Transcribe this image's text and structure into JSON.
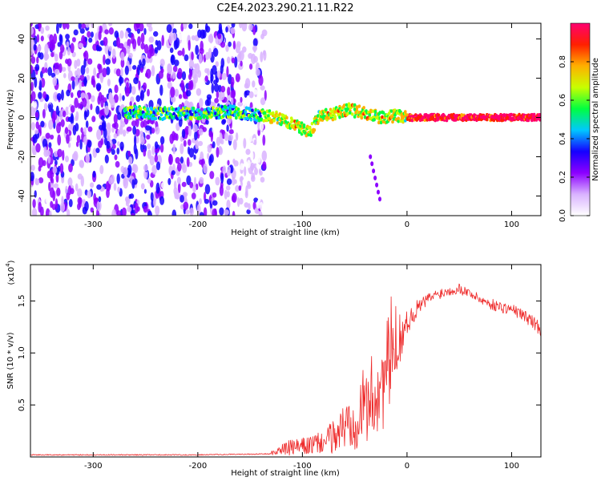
{
  "title": "C2E4.2023.290.21.11.R22",
  "chart_data": [
    {
      "type": "heatmap",
      "name": "spectrogram",
      "xlabel": "Height of straight line (km)",
      "ylabel": "Frequency (Hz)",
      "xlim": [
        -360,
        128
      ],
      "ylim": [
        -50,
        48
      ],
      "xticks": [
        -300,
        -200,
        -100,
        0,
        100
      ],
      "yticks": [
        -40,
        -20,
        0,
        20,
        40
      ],
      "noise_region": {
        "x_range": [
          -360,
          -145
        ],
        "gap": [
          -233,
          -228
        ]
      },
      "signal_ridge": {
        "x": [
          -270,
          -240,
          -200,
          -170,
          -140,
          -125,
          -112,
          -100,
          -92,
          -85,
          -70,
          -55,
          -40,
          -25,
          -10,
          0,
          50,
          100,
          128
        ],
        "y": [
          3,
          2,
          2,
          3,
          1,
          0,
          -3,
          -6,
          -7,
          0,
          2,
          4,
          2,
          0,
          1,
          0,
          0,
          0,
          0
        ]
      },
      "tail": {
        "x": [
          -35,
          -30,
          -25
        ],
        "y": [
          -20,
          -32,
          -44
        ]
      },
      "colorbar": {
        "label": "Normalized spectral amplitude",
        "range": [
          0,
          1
        ],
        "ticks": [
          0.0,
          0.2,
          0.4,
          0.6,
          0.8
        ],
        "tick_labels": [
          "0.0",
          "0.2",
          "0.4",
          "0.6",
          "0.8"
        ],
        "colors": [
          "#ffffff",
          "#d9b3ff",
          "#8c00ff",
          "#1500ff",
          "#00c8ff",
          "#00ff40",
          "#c8ff00",
          "#ffb000",
          "#ff2000",
          "#ff0070"
        ]
      }
    },
    {
      "type": "line",
      "name": "snr",
      "xlabel": "Height of straight line (km)",
      "ylabel": "SNR (10 * v/v)",
      "yscale_label": "(x10",
      "yscale_exp": "4",
      "yscale_close": ")",
      "xlim": [
        -360,
        128
      ],
      "ylim": [
        0,
        1.85
      ],
      "xticks": [
        -300,
        -200,
        -100,
        0,
        100
      ],
      "yticks": [
        0.5,
        1.0,
        1.5
      ],
      "ytick_labels": [
        "0.5",
        "1.0",
        "1.5"
      ],
      "color": "#ee2a2a",
      "envelope": {
        "x": [
          -360,
          -200,
          -130,
          -120,
          -110,
          -100,
          -90,
          -80,
          -70,
          -60,
          -50,
          -40,
          -30,
          -20,
          -15,
          -10,
          -5,
          0,
          10,
          20,
          30,
          40,
          50,
          60,
          70,
          80,
          90,
          100,
          110,
          120,
          128
        ],
        "base": [
          0.02,
          0.02,
          0.03,
          0.05,
          0.06,
          0.07,
          0.08,
          0.1,
          0.14,
          0.2,
          0.28,
          0.35,
          0.45,
          0.6,
          0.8,
          1.0,
          1.1,
          1.25,
          1.4,
          1.5,
          1.55,
          1.58,
          1.6,
          1.56,
          1.5,
          1.45,
          1.42,
          1.4,
          1.35,
          1.28,
          1.2
        ],
        "amp": [
          0.01,
          0.01,
          0.03,
          0.1,
          0.15,
          0.15,
          0.18,
          0.2,
          0.3,
          0.45,
          0.6,
          0.7,
          0.8,
          0.9,
          1.0,
          0.6,
          0.4,
          0.2,
          0.15,
          0.1,
          0.1,
          0.08,
          0.1,
          0.08,
          0.08,
          0.1,
          0.1,
          0.1,
          0.1,
          0.12,
          0.12
        ]
      }
    }
  ]
}
